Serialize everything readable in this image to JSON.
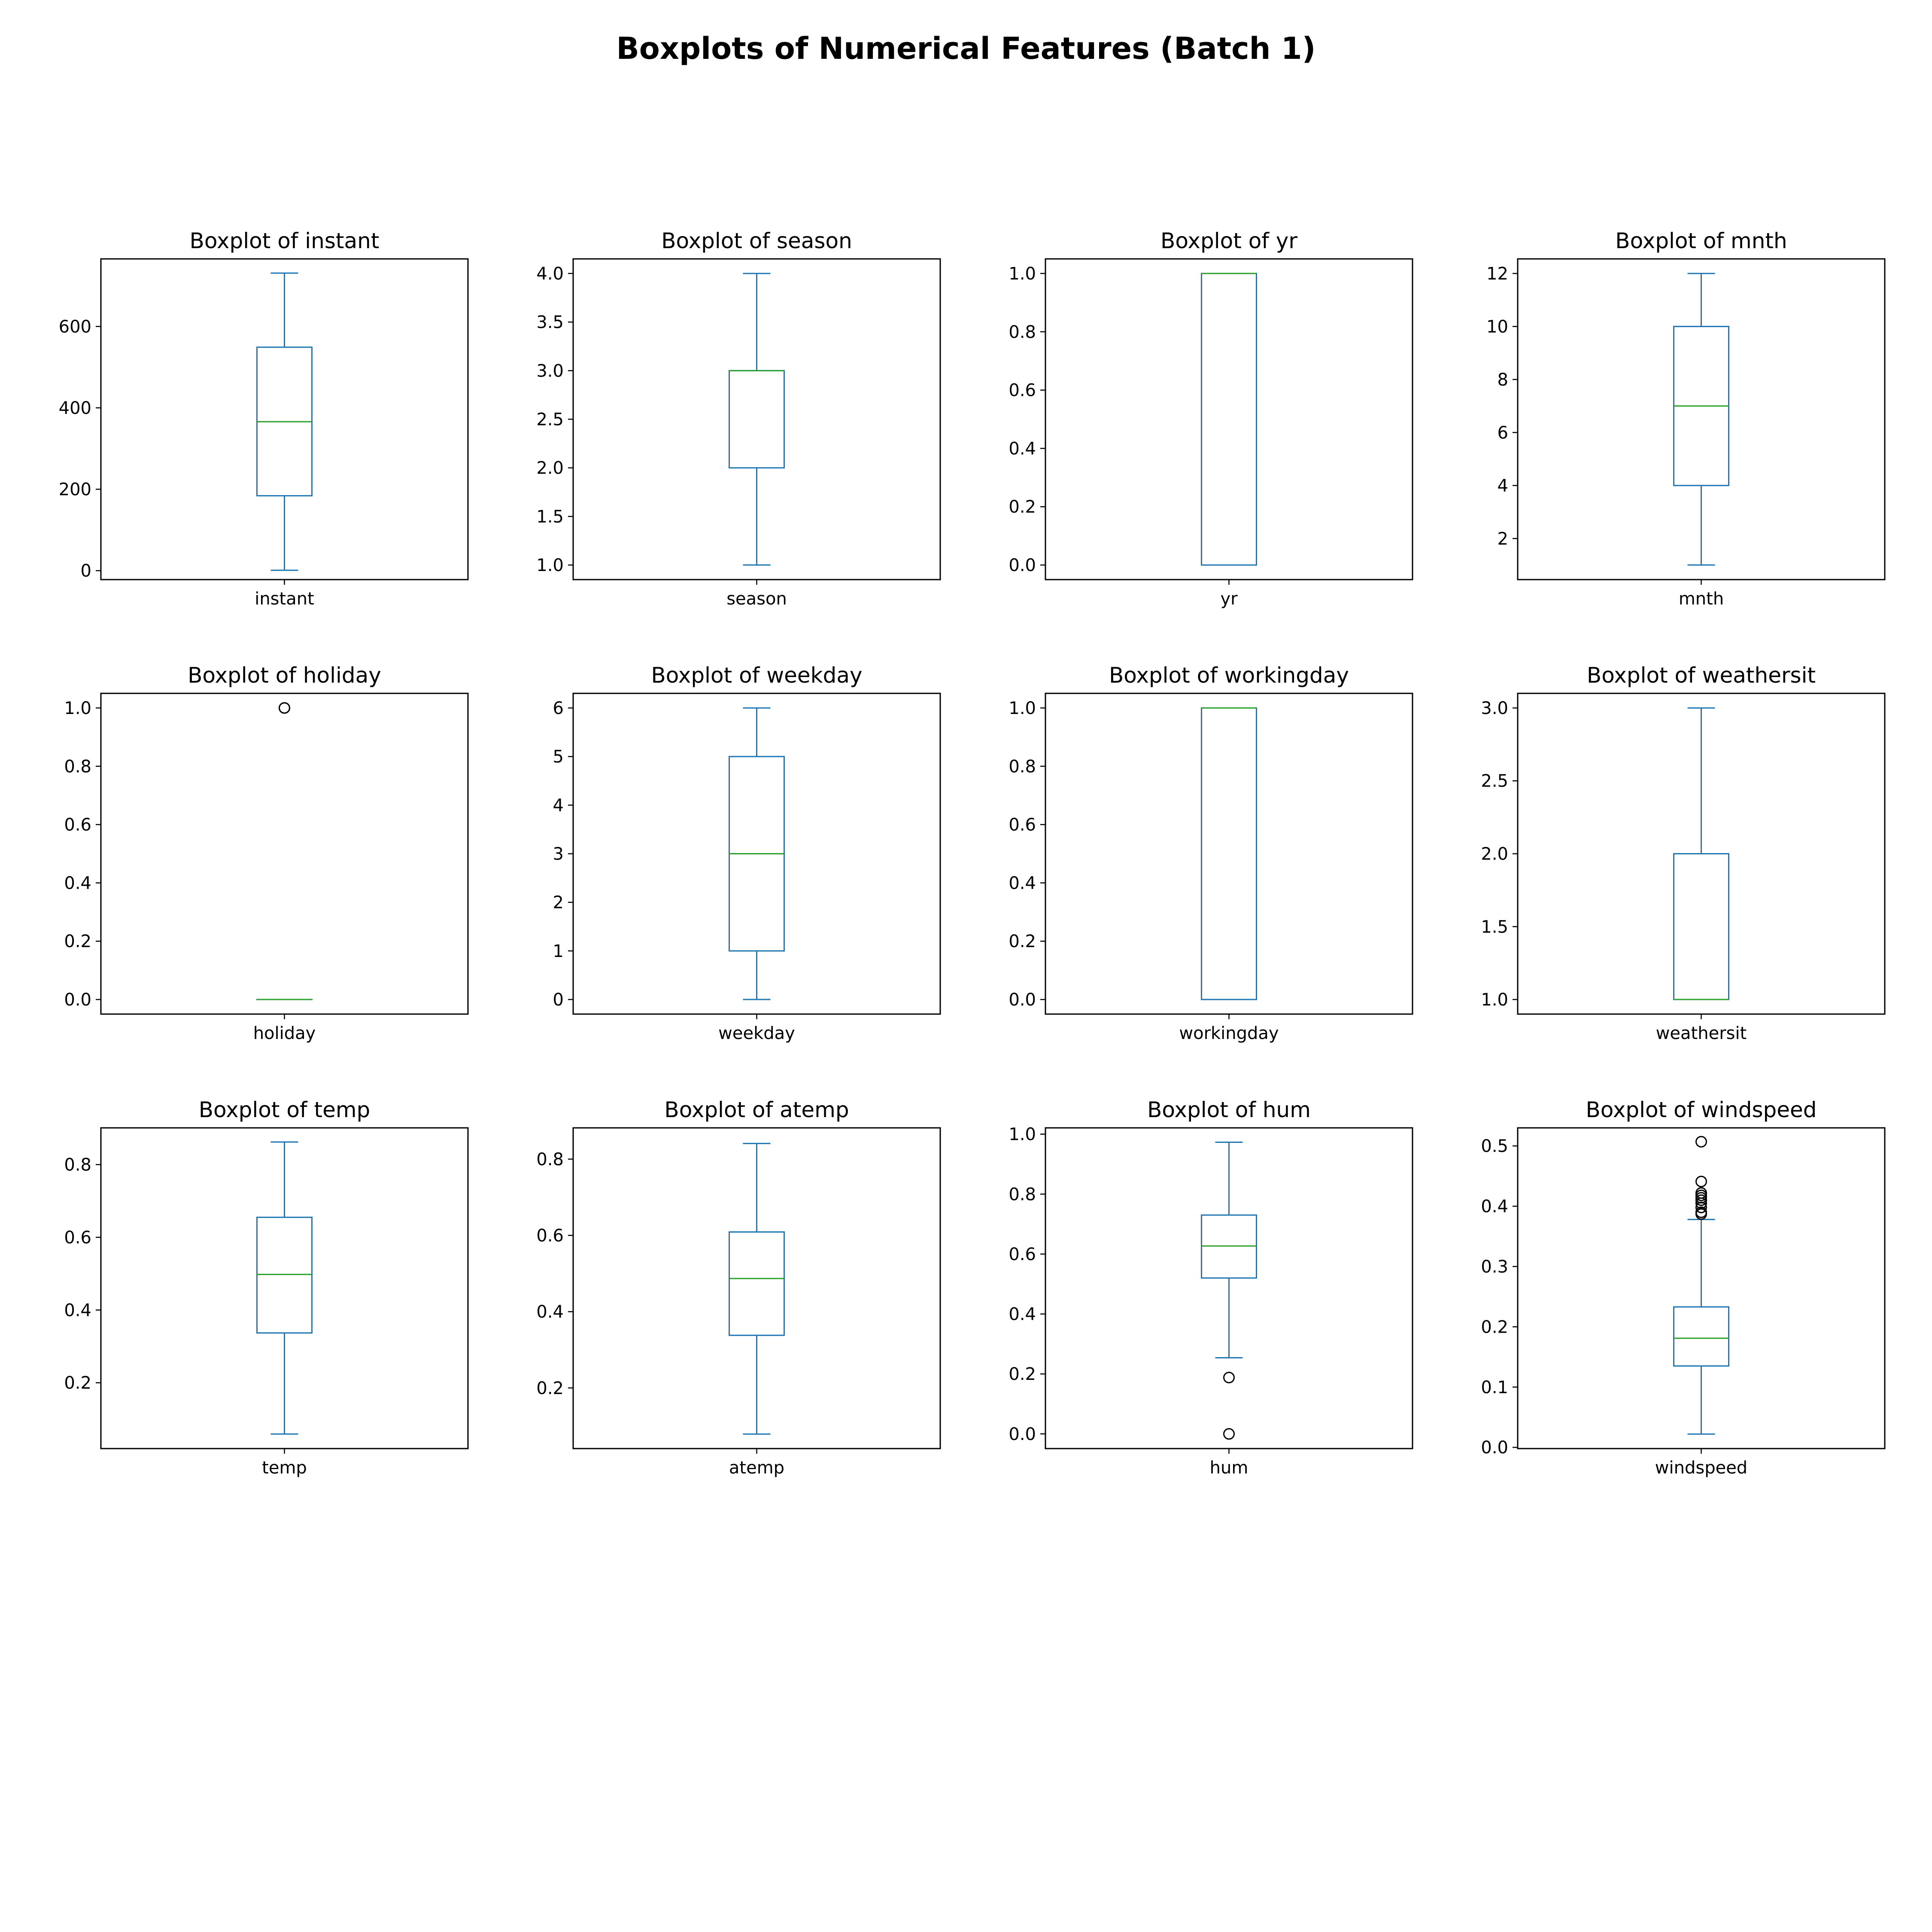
{
  "title": "Boxplots of Numerical Features (Batch 1)",
  "colors": {
    "box": "#1f77b4",
    "median": "#2ca02c",
    "outlier": "#000000",
    "frame": "#000000"
  },
  "chart_data": [
    {
      "type": "box",
      "title": "Boxplot of instant",
      "category": "instant",
      "ylim": [
        -22,
        766
      ],
      "yticks": [
        0,
        200,
        400,
        600
      ],
      "ytick_labels": [
        "0",
        "200",
        "400",
        "600"
      ],
      "whislo": 1,
      "q1": 184,
      "median": 366,
      "q3": 549,
      "whishi": 731,
      "fliers": []
    },
    {
      "type": "box",
      "title": "Boxplot of season",
      "category": "season",
      "ylim": [
        0.85,
        4.15
      ],
      "yticks": [
        1.0,
        1.5,
        2.0,
        2.5,
        3.0,
        3.5,
        4.0
      ],
      "ytick_labels": [
        "1.0",
        "1.5",
        "2.0",
        "2.5",
        "3.0",
        "3.5",
        "4.0"
      ],
      "whislo": 1,
      "q1": 2,
      "median": 3,
      "q3": 3,
      "whishi": 4,
      "fliers": []
    },
    {
      "type": "box",
      "title": "Boxplot of yr",
      "category": "yr",
      "ylim": [
        -0.05,
        1.05
      ],
      "yticks": [
        0.0,
        0.2,
        0.4,
        0.6,
        0.8,
        1.0
      ],
      "ytick_labels": [
        "0.0",
        "0.2",
        "0.4",
        "0.6",
        "0.8",
        "1.0"
      ],
      "whislo": 0,
      "q1": 0,
      "median": 1,
      "q3": 1,
      "whishi": 1,
      "fliers": []
    },
    {
      "type": "box",
      "title": "Boxplot of mnth",
      "category": "mnth",
      "ylim": [
        0.45,
        12.55
      ],
      "yticks": [
        2,
        4,
        6,
        8,
        10,
        12
      ],
      "ytick_labels": [
        "2",
        "4",
        "6",
        "8",
        "10",
        "12"
      ],
      "whislo": 1,
      "q1": 4,
      "median": 7,
      "q3": 10,
      "whishi": 12,
      "fliers": []
    },
    {
      "type": "box",
      "title": "Boxplot of holiday",
      "category": "holiday",
      "ylim": [
        -0.05,
        1.05
      ],
      "yticks": [
        0.0,
        0.2,
        0.4,
        0.6,
        0.8,
        1.0
      ],
      "ytick_labels": [
        "0.0",
        "0.2",
        "0.4",
        "0.6",
        "0.8",
        "1.0"
      ],
      "whislo": 0,
      "q1": 0,
      "median": 0,
      "q3": 0,
      "whishi": 0,
      "fliers": [
        1.0,
        1.0
      ]
    },
    {
      "type": "box",
      "title": "Boxplot of weekday",
      "category": "weekday",
      "ylim": [
        -0.3,
        6.3
      ],
      "yticks": [
        0,
        1,
        2,
        3,
        4,
        5,
        6
      ],
      "ytick_labels": [
        "0",
        "1",
        "2",
        "3",
        "4",
        "5",
        "6"
      ],
      "whislo": 0,
      "q1": 1,
      "median": 3,
      "q3": 5,
      "whishi": 6,
      "fliers": []
    },
    {
      "type": "box",
      "title": "Boxplot of workingday",
      "category": "workingday",
      "ylim": [
        -0.05,
        1.05
      ],
      "yticks": [
        0.0,
        0.2,
        0.4,
        0.6,
        0.8,
        1.0
      ],
      "ytick_labels": [
        "0.0",
        "0.2",
        "0.4",
        "0.6",
        "0.8",
        "1.0"
      ],
      "whislo": 0,
      "q1": 0,
      "median": 1,
      "q3": 1,
      "whishi": 1,
      "fliers": []
    },
    {
      "type": "box",
      "title": "Boxplot of weathersit",
      "category": "weathersit",
      "ylim": [
        0.9,
        3.1
      ],
      "yticks": [
        1.0,
        1.5,
        2.0,
        2.5,
        3.0
      ],
      "ytick_labels": [
        "1.0",
        "1.5",
        "2.0",
        "2.5",
        "3.0"
      ],
      "whislo": 1,
      "q1": 1,
      "median": 1,
      "q3": 2,
      "whishi": 3,
      "fliers": []
    },
    {
      "type": "box",
      "title": "Boxplot of temp",
      "category": "temp",
      "ylim": [
        0.019,
        0.901
      ],
      "yticks": [
        0.2,
        0.4,
        0.6,
        0.8
      ],
      "ytick_labels": [
        "0.2",
        "0.4",
        "0.6",
        "0.8"
      ],
      "whislo": 0.059,
      "q1": 0.337,
      "median": 0.498,
      "q3": 0.655,
      "whishi": 0.862,
      "fliers": []
    },
    {
      "type": "box",
      "title": "Boxplot of atemp",
      "category": "atemp",
      "ylim": [
        0.041,
        0.882
      ],
      "yticks": [
        0.2,
        0.4,
        0.6,
        0.8
      ],
      "ytick_labels": [
        "0.2",
        "0.4",
        "0.6",
        "0.8"
      ],
      "whislo": 0.079,
      "q1": 0.338,
      "median": 0.487,
      "q3": 0.609,
      "whishi": 0.841,
      "fliers": []
    },
    {
      "type": "box",
      "title": "Boxplot of hum",
      "category": "hum",
      "ylim": [
        -0.049,
        1.021
      ],
      "yticks": [
        0.0,
        0.2,
        0.4,
        0.6,
        0.8,
        1.0
      ],
      "ytick_labels": [
        "0.0",
        "0.2",
        "0.4",
        "0.6",
        "0.8",
        "1.0"
      ],
      "whislo": 0.254,
      "q1": 0.52,
      "median": 0.627,
      "q3": 0.73,
      "whishi": 0.973,
      "fliers": [
        0.0,
        0.188
      ]
    },
    {
      "type": "box",
      "title": "Boxplot of windspeed",
      "category": "windspeed",
      "ylim": [
        -0.002,
        0.53
      ],
      "yticks": [
        0.0,
        0.1,
        0.2,
        0.3,
        0.4,
        0.5
      ],
      "ytick_labels": [
        "0.0",
        "0.1",
        "0.2",
        "0.3",
        "0.4",
        "0.5"
      ],
      "whislo": 0.022,
      "q1": 0.135,
      "median": 0.181,
      "q3": 0.233,
      "whishi": 0.378,
      "fliers": [
        0.387,
        0.39,
        0.398,
        0.405,
        0.41,
        0.414,
        0.418,
        0.422,
        0.441,
        0.507
      ]
    }
  ]
}
